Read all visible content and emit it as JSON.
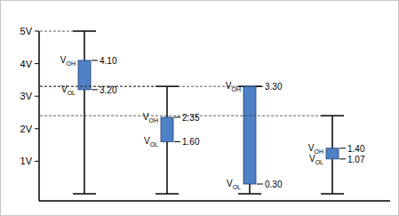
{
  "chart_data": {
    "type": "floating_bar",
    "categories": [
      null,
      null,
      null,
      null
    ],
    "supply": [
      5,
      3.3,
      3.3,
      2.4
    ],
    "highs": [
      4.1,
      2.35,
      3.3,
      1.4
    ],
    "high_labels": [
      "4.10",
      "2.35",
      "3.30",
      "1.40"
    ],
    "lows": [
      3.2,
      1.6,
      0.3,
      1.07
    ],
    "low_labels": [
      "3.20",
      "1.60",
      "0.30",
      "1.07"
    ],
    "high_name": "VOH",
    "low_name": "VOL",
    "color": "#4f81c7",
    "ylim": [
      0,
      5
    ],
    "yticks": [
      {
        "value": 1,
        "label": "1V"
      },
      {
        "value": 2,
        "label": "2V"
      },
      {
        "value": 3,
        "label": "3V"
      },
      {
        "value": 4,
        "label": "4V"
      },
      {
        "value": 5,
        "label": "5V"
      }
    ]
  }
}
